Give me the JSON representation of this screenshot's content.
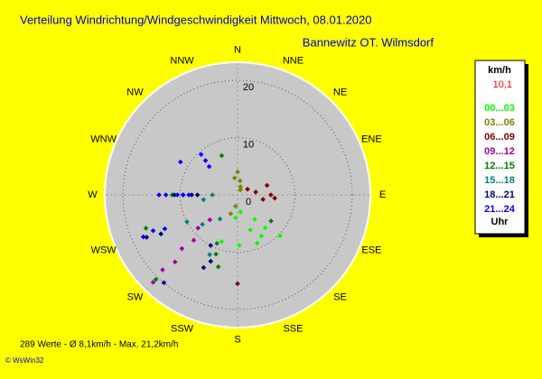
{
  "chart_data": {
    "type": "polar_scatter",
    "title": "Verteilung Windrichtung/Windgeschwindigkeit  Mittwoch, 08.01.2020",
    "subtitle": "Bannewitz OT. Wilmsdorf",
    "directions": [
      "N",
      "NNE",
      "NE",
      "ENE",
      "E",
      "ESE",
      "SE",
      "SSE",
      "S",
      "SSW",
      "SW",
      "WSW",
      "W",
      "WNW",
      "NW",
      "NNW"
    ],
    "rlim": [
      0,
      23
    ],
    "rticks": [
      0,
      10,
      20
    ],
    "grid": true,
    "legend_unit": "km/h",
    "legend_value": "10,1",
    "legend_footer": "Uhr",
    "series": [
      {
        "name": "00...03",
        "color": "#00ff00",
        "x": [
          178,
          150,
          134,
          158,
          199,
          160,
          145,
          185,
          170,
          140
        ],
        "values": [
          8.8,
          8.3,
          10.3,
          9.1,
          8.6,
          6.5,
          5.2,
          4.0,
          3.0,
          7.5
        ]
      },
      {
        "name": "03...06",
        "color": "#808000",
        "x": [
          0,
          10,
          350,
          20,
          190,
          200,
          30
        ],
        "values": [
          4.0,
          2.5,
          3.0,
          1.5,
          2.0,
          3.5,
          1.0
        ]
      },
      {
        "name": "06...09",
        "color": "#800000",
        "x": [
          90,
          72,
          81,
          180,
          100,
          60,
          95
        ],
        "values": [
          5.8,
          5.4,
          3.2,
          15.5,
          4.5,
          2.0,
          6.5
        ]
      },
      {
        "name": "09...12",
        "color": "#a000a0",
        "x": [
          224,
          225,
          223,
          226,
          224,
          230,
          228
        ],
        "values": [
          21.2,
          18.5,
          16.0,
          13.5,
          11.0,
          9.0,
          6.5
        ]
      },
      {
        "name": "12...15",
        "color": "#008000",
        "x": [
          338,
          270,
          203,
          128,
          224,
          250,
          200,
          195
        ],
        "values": [
          7.4,
          11.4,
          9.2,
          7.4,
          20.5,
          17.0,
          11.0,
          13.0
        ]
      },
      {
        "name": "15...18",
        "color": "#008080",
        "x": [
          270,
          216,
          262,
          242,
          205,
          230
        ],
        "values": [
          4.4,
          5.2,
          6.0,
          10.0,
          11.5,
          8.0
        ]
      },
      {
        "name": "18...21",
        "color": "#000080",
        "x": [
          270,
          270,
          270,
          270,
          245,
          243,
          202,
          205,
          208,
          220
        ],
        "values": [
          11.0,
          9.5,
          8.0,
          7.0,
          17.5,
          15.0,
          12.5,
          14.0,
          10.0,
          20.0
        ]
      },
      {
        "name": "21...24",
        "color": "#0000ff",
        "x": [
          270,
          270,
          270,
          270,
          270,
          246,
          247,
          245,
          317,
          318,
          315,
          300
        ],
        "values": [
          13.7,
          12.5,
          10.5,
          9.5,
          8.5,
          18.0,
          16.0,
          14.0,
          8.2,
          9.5,
          7.0,
          11.5
        ]
      }
    ],
    "footer": "289 Werte   -   Ø 8,1km/h   -   Max. 21,2km/h",
    "copyright": "© WsWin32"
  }
}
